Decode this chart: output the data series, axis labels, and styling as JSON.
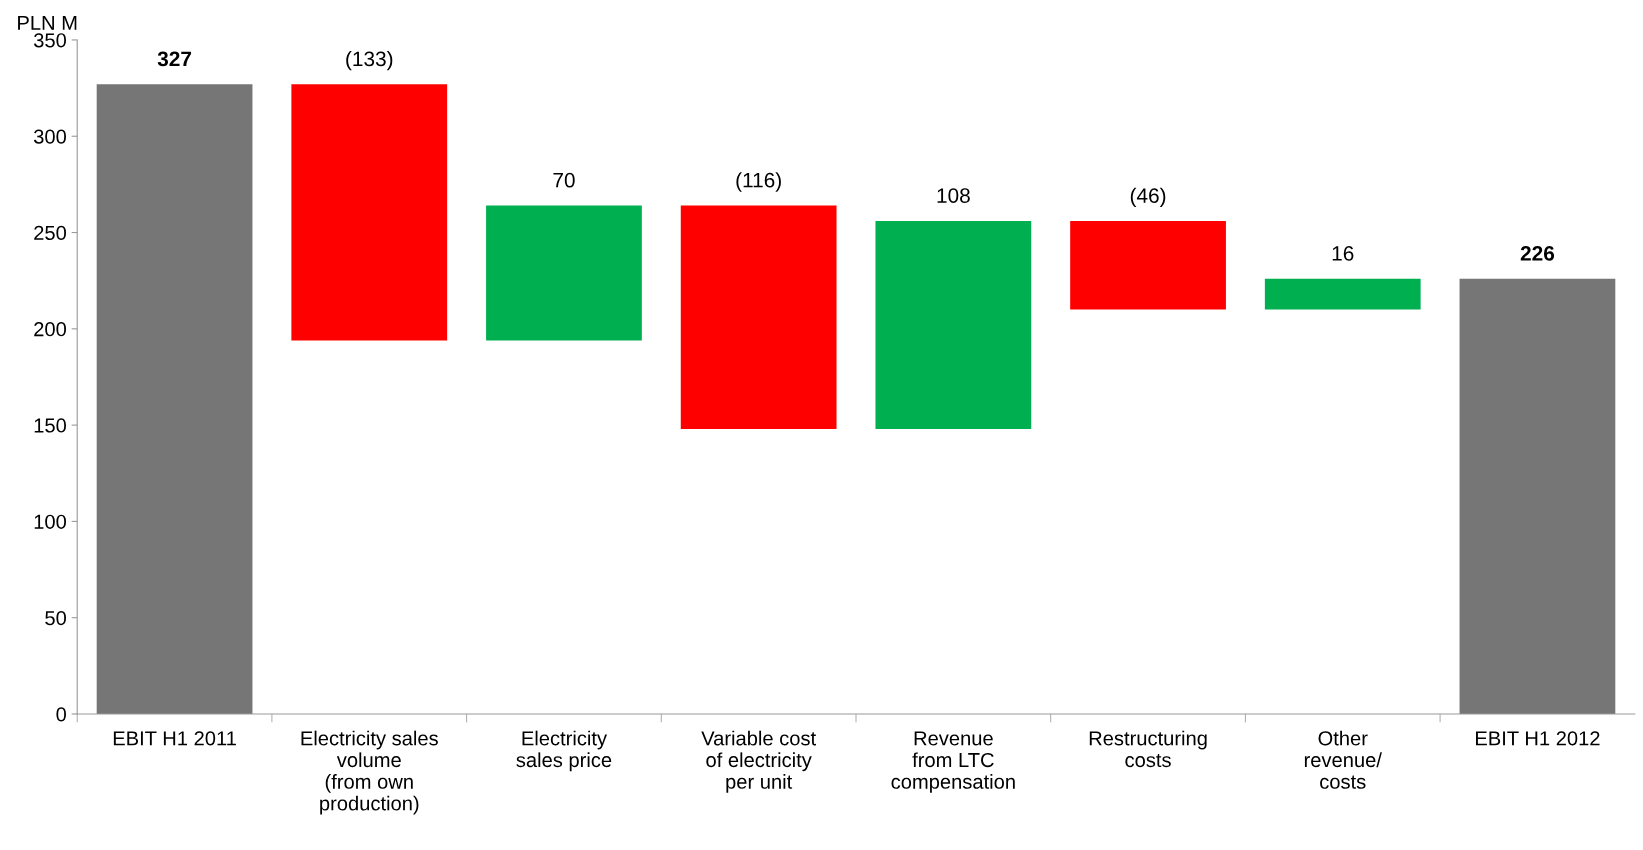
{
  "chart_data": {
    "type": "bar",
    "ylabel": "PLN M",
    "categories": [
      "EBIT H1 2011",
      "Electricity sales\nvolume\n(from own\nproduction)",
      "Electricity\nsales price",
      "Variable cost\nof electricity\nper unit",
      "Revenue\nfrom LTC\ncompensation",
      "Restructuring\ncosts",
      "Other\nrevenue/\ncosts",
      "EBIT H1 2012"
    ],
    "values": [
      327,
      -133,
      70,
      -116,
      108,
      -46,
      16,
      226
    ],
    "base": [
      0,
      327,
      194,
      264,
      148,
      256,
      210,
      0
    ],
    "colors": [
      "#767676",
      "#ff0000",
      "#00b050",
      "#ff0000",
      "#00b050",
      "#ff0000",
      "#00b050",
      "#767676"
    ],
    "value_labels": [
      "327",
      "(133)",
      "70",
      "(116)",
      "108",
      "(46)",
      "16",
      "226"
    ],
    "ylim": [
      0,
      350
    ],
    "yticks": [
      0,
      50,
      100,
      150,
      200,
      250,
      300,
      350
    ],
    "grid": false,
    "legend": false
  }
}
